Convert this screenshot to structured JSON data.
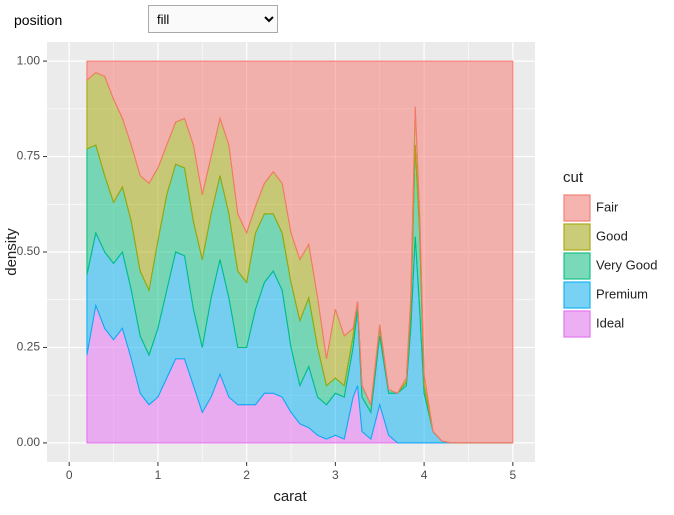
{
  "controls": {
    "label": "position",
    "value": "fill"
  },
  "chart_data": {
    "type": "area",
    "stacking": "fill",
    "x_label": "carat",
    "y_label": "density",
    "legend_title": "cut",
    "x": [
      0.2,
      0.3,
      0.4,
      0.5,
      0.6,
      0.7,
      0.8,
      0.9,
      1.0,
      1.1,
      1.2,
      1.3,
      1.4,
      1.5,
      1.6,
      1.7,
      1.8,
      1.9,
      2.0,
      2.1,
      2.2,
      2.3,
      2.4,
      2.5,
      2.6,
      2.7,
      2.8,
      2.9,
      3.0,
      3.1,
      3.2,
      3.25,
      3.3,
      3.4,
      3.5,
      3.6,
      3.7,
      3.8,
      3.85,
      3.9,
      3.95,
      4.0,
      4.1,
      4.2,
      4.3,
      5.0
    ],
    "series": [
      {
        "name": "Fair",
        "color": "#F8766D",
        "values": [
          0.05,
          0.03,
          0.04,
          0.1,
          0.15,
          0.22,
          0.3,
          0.32,
          0.28,
          0.22,
          0.16,
          0.15,
          0.22,
          0.35,
          0.25,
          0.15,
          0.22,
          0.4,
          0.45,
          0.38,
          0.32,
          0.29,
          0.32,
          0.45,
          0.52,
          0.48,
          0.62,
          0.78,
          0.65,
          0.72,
          0.7,
          0.63,
          0.85,
          0.9,
          0.69,
          0.86,
          0.87,
          0.83,
          0.62,
          0.12,
          0.4,
          0.82,
          0.97,
          0.995,
          1,
          1
        ]
      },
      {
        "name": "Good",
        "color": "#A3A500",
        "values": [
          0.18,
          0.19,
          0.26,
          0.27,
          0.18,
          0.2,
          0.25,
          0.28,
          0.19,
          0.13,
          0.11,
          0.13,
          0.2,
          0.17,
          0.15,
          0.15,
          0.18,
          0.15,
          0.13,
          0.07,
          0.08,
          0.11,
          0.13,
          0.13,
          0.16,
          0.14,
          0.13,
          0.07,
          0.18,
          0.13,
          0.02,
          0,
          0,
          0,
          0.01,
          0,
          0,
          0.01,
          0.03,
          0.1,
          0.05,
          0.03,
          0,
          0,
          0,
          0
        ]
      },
      {
        "name": "Very Good",
        "color": "#00BF7D",
        "values": [
          0.33,
          0.23,
          0.2,
          0.16,
          0.17,
          0.18,
          0.17,
          0.17,
          0.23,
          0.25,
          0.23,
          0.23,
          0.23,
          0.23,
          0.22,
          0.22,
          0.22,
          0.2,
          0.17,
          0.2,
          0.18,
          0.15,
          0.15,
          0.17,
          0.17,
          0.18,
          0.13,
          0.05,
          0.04,
          0.03,
          0.03,
          0.02,
          0.03,
          0.02,
          0.02,
          0.01,
          0,
          0.01,
          0.05,
          0.24,
          0.2,
          0.02,
          0,
          0,
          0,
          0
        ]
      },
      {
        "name": "Premium",
        "color": "#00B0F6",
        "values": [
          0.21,
          0.19,
          0.2,
          0.2,
          0.2,
          0.18,
          0.15,
          0.13,
          0.18,
          0.23,
          0.28,
          0.27,
          0.2,
          0.17,
          0.26,
          0.3,
          0.26,
          0.15,
          0.15,
          0.25,
          0.29,
          0.32,
          0.28,
          0.17,
          0.1,
          0.16,
          0.1,
          0.09,
          0.11,
          0.11,
          0.13,
          0.2,
          0.09,
          0.07,
          0.18,
          0.11,
          0.13,
          0.15,
          0.3,
          0.54,
          0.35,
          0.13,
          0.03,
          0.005,
          0,
          0
        ]
      },
      {
        "name": "Ideal",
        "color": "#E76BF3",
        "values": [
          0.23,
          0.36,
          0.3,
          0.27,
          0.3,
          0.22,
          0.13,
          0.1,
          0.12,
          0.17,
          0.22,
          0.22,
          0.15,
          0.08,
          0.12,
          0.18,
          0.12,
          0.1,
          0.1,
          0.1,
          0.13,
          0.13,
          0.12,
          0.08,
          0.05,
          0.04,
          0.02,
          0.01,
          0.02,
          0.01,
          0.12,
          0.15,
          0.03,
          0.01,
          0.1,
          0.02,
          0,
          0,
          0,
          0,
          0,
          0,
          0,
          0,
          0,
          0
        ]
      }
    ],
    "xlim": [
      -0.25,
      5.25
    ],
    "xticks": [
      0,
      1,
      2,
      3,
      4,
      5
    ],
    "ylim": [
      -0.05,
      1.05
    ],
    "yticks": [
      {
        "value": 0,
        "label": "0.00"
      },
      {
        "value": 0.25,
        "label": "0.25"
      },
      {
        "value": 0.5,
        "label": "0.50"
      },
      {
        "value": 0.75,
        "label": "0.75"
      },
      {
        "value": 1,
        "label": "1.00"
      }
    ],
    "grid": true,
    "legend_position": "right"
  }
}
